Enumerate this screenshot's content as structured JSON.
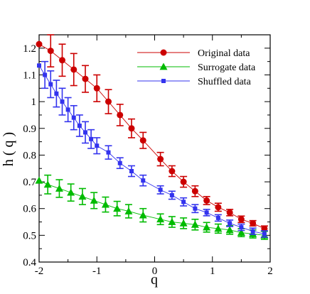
{
  "chart_data": {
    "type": "line",
    "title": "",
    "xlabel": "q",
    "ylabel": "h ( q )",
    "xlim": [
      -2,
      2
    ],
    "ylim": [
      0.4,
      1.25
    ],
    "xticks": [
      -2,
      -1,
      0,
      1,
      2
    ],
    "xtick_labels": [
      "-2",
      "-1",
      "0",
      "1",
      "2"
    ],
    "yticks": [
      0.4,
      0.5,
      0.6,
      0.7,
      0.8,
      0.9,
      1.0,
      1.1,
      1.2
    ],
    "ytick_labels": [
      "0.4",
      "0.5",
      "0.6",
      "0.7",
      "0.8",
      "0.9",
      "1",
      "1.1",
      "1.2"
    ],
    "grid": false,
    "legend_position": "top-right",
    "series": [
      {
        "name": "Original data",
        "color": "#cc0000",
        "marker": "circle",
        "x": [
          -2.0,
          -1.8,
          -1.6,
          -1.4,
          -1.2,
          -1.0,
          -0.8,
          -0.6,
          -0.4,
          -0.2,
          0.1,
          0.3,
          0.5,
          0.7,
          0.9,
          1.1,
          1.3,
          1.5,
          1.7,
          1.9
        ],
        "y": [
          1.215,
          1.19,
          1.155,
          1.12,
          1.085,
          1.05,
          1.0,
          0.95,
          0.9,
          0.855,
          0.785,
          0.74,
          0.7,
          0.665,
          0.63,
          0.605,
          0.585,
          0.56,
          0.545,
          0.525
        ],
        "error": [
          0.0,
          0.06,
          0.06,
          0.06,
          0.05,
          0.05,
          0.045,
          0.04,
          0.035,
          0.03,
          0.025,
          0.02,
          0.02,
          0.02,
          0.015,
          0.015,
          0.012,
          0.012,
          0.01,
          0.01
        ]
      },
      {
        "name": "Surrogate data",
        "color": "#00bb00",
        "marker": "triangle",
        "x": [
          -2.0,
          -1.85,
          -1.65,
          -1.45,
          -1.25,
          -1.05,
          -0.85,
          -0.65,
          -0.45,
          -0.2,
          0.1,
          0.3,
          0.5,
          0.7,
          0.9,
          1.1,
          1.3,
          1.5,
          1.7,
          1.9
        ],
        "y": [
          0.705,
          0.69,
          0.675,
          0.66,
          0.645,
          0.63,
          0.615,
          0.6,
          0.59,
          0.575,
          0.56,
          0.55,
          0.545,
          0.54,
          0.53,
          0.525,
          0.52,
          0.51,
          0.505,
          0.5
        ],
        "error": [
          0.0,
          0.035,
          0.033,
          0.032,
          0.03,
          0.03,
          0.028,
          0.027,
          0.025,
          0.025,
          0.02,
          0.02,
          0.02,
          0.02,
          0.018,
          0.017,
          0.016,
          0.015,
          0.015,
          0.015
        ]
      },
      {
        "name": "Shuffled data",
        "color": "#3333ee",
        "marker": "square",
        "x": [
          -2.0,
          -1.9,
          -1.8,
          -1.7,
          -1.6,
          -1.5,
          -1.4,
          -1.3,
          -1.2,
          -1.1,
          -1.0,
          -0.8,
          -0.6,
          -0.4,
          -0.2,
          0.1,
          0.3,
          0.5,
          0.7,
          0.9,
          1.1,
          1.3,
          1.5,
          1.7,
          1.9
        ],
        "y": [
          1.135,
          1.1,
          1.065,
          1.03,
          1.0,
          0.97,
          0.94,
          0.91,
          0.885,
          0.86,
          0.835,
          0.81,
          0.77,
          0.74,
          0.705,
          0.67,
          0.65,
          0.625,
          0.6,
          0.585,
          0.565,
          0.545,
          0.53,
          0.515,
          0.505
        ],
        "error": [
          0.0,
          0.05,
          0.05,
          0.05,
          0.05,
          0.045,
          0.045,
          0.04,
          0.04,
          0.035,
          0.03,
          0.025,
          0.02,
          0.02,
          0.02,
          0.015,
          0.015,
          0.015,
          0.015,
          0.012,
          0.012,
          0.012,
          0.012,
          0.012,
          0.012
        ]
      }
    ]
  }
}
